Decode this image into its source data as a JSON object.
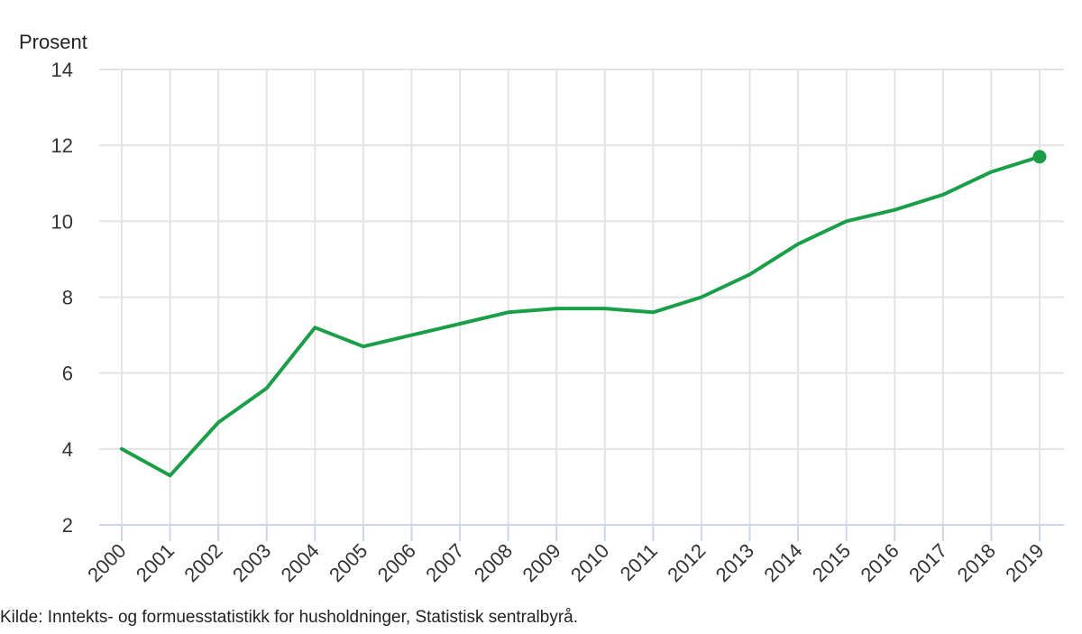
{
  "chart_data": {
    "type": "line",
    "title": "",
    "xlabel": "",
    "ylabel": "Prosent",
    "ylim": [
      2,
      14
    ],
    "yticks": [
      2,
      4,
      6,
      8,
      10,
      12,
      14
    ],
    "grid": true,
    "legend": null,
    "categories": [
      "2000",
      "2001",
      "2002",
      "2003",
      "2004",
      "2005",
      "2006",
      "2007",
      "2008",
      "2009",
      "2010",
      "2011",
      "2012",
      "2013",
      "2014",
      "2015",
      "2016",
      "2017",
      "2018",
      "2019"
    ],
    "series": [
      {
        "name": "Prosent",
        "color": "#1a9e48",
        "values": [
          4.0,
          3.3,
          4.7,
          5.6,
          7.2,
          6.7,
          7.0,
          7.3,
          7.6,
          7.7,
          7.7,
          7.6,
          8.0,
          8.6,
          9.4,
          10.0,
          10.3,
          10.7,
          11.3,
          11.7
        ],
        "end_marker": true
      }
    ],
    "source": "Kilde: Inntekts- og formuesstatistikk for husholdninger, Statistisk sentralbyrå."
  },
  "colors": {
    "line": "#1a9e48",
    "grid": "#e3e3e3",
    "axis": "#ccd6eb",
    "text": "#333333"
  }
}
